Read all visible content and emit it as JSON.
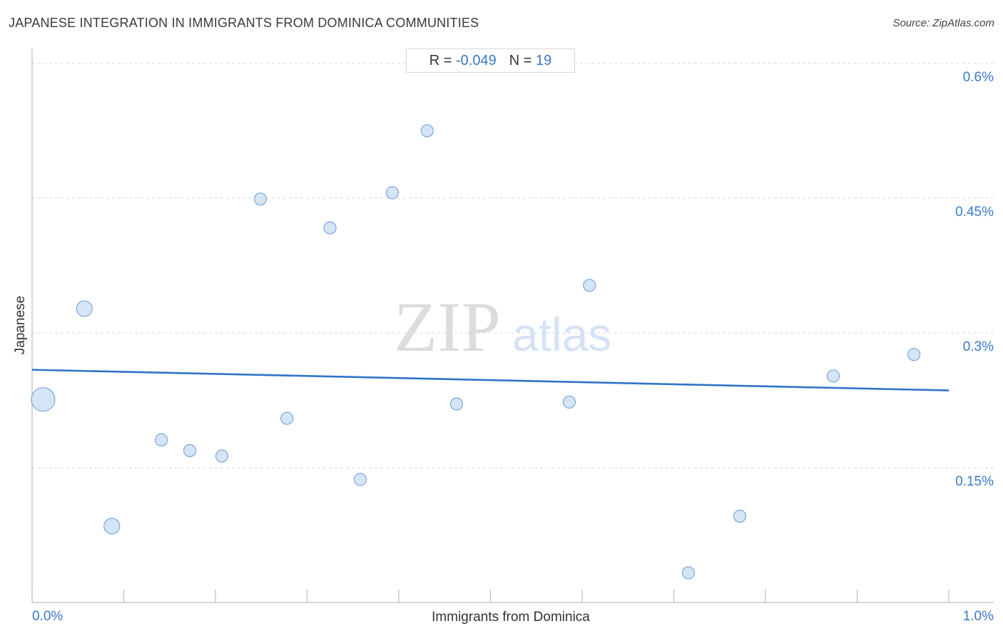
{
  "title": "JAPANESE INTEGRATION IN IMMIGRANTS FROM DOMINICA COMMUNITIES",
  "source": "Source: ZipAtlas.com",
  "stats": {
    "r_label": "R =",
    "r_value": "-0.049",
    "n_label": "N =",
    "n_value": "19"
  },
  "watermark": {
    "zip": "ZIP",
    "atlas": "atlas"
  },
  "colors": {
    "point_fill": "#cfe0f5",
    "point_stroke": "#7aa6dc",
    "trend": "#2f74c8",
    "tick_text": "#3a78c9",
    "grid": "#d9d9d9"
  },
  "chart_data": {
    "type": "scatter",
    "title": "JAPANESE INTEGRATION IN IMMIGRANTS FROM DOMINICA COMMUNITIES",
    "xlabel": "Immigrants from Dominica",
    "ylabel": "Japanese",
    "xlim": [
      0,
      1.0
    ],
    "ylim": [
      0,
      0.615
    ],
    "x_tick_labels": [
      {
        "value": 0,
        "label": "0.0%"
      },
      {
        "value": 1.0,
        "label": "1.0%"
      }
    ],
    "y_tick_labels": [
      {
        "value": 0.15,
        "label": "0.15%"
      },
      {
        "value": 0.3,
        "label": "0.3%"
      },
      {
        "value": 0.45,
        "label": "0.45%"
      },
      {
        "value": 0.6,
        "label": "0.6%"
      }
    ],
    "grid": true,
    "points": [
      {
        "x": 0.012,
        "y": 0.226,
        "size": 3
      },
      {
        "x": 0.057,
        "y": 0.327,
        "size": 2
      },
      {
        "x": 0.087,
        "y": 0.085,
        "size": 2
      },
      {
        "x": 0.141,
        "y": 0.181,
        "size": 1
      },
      {
        "x": 0.172,
        "y": 0.169,
        "size": 1
      },
      {
        "x": 0.207,
        "y": 0.163,
        "size": 1
      },
      {
        "x": 0.249,
        "y": 0.449,
        "size": 1
      },
      {
        "x": 0.278,
        "y": 0.205,
        "size": 1
      },
      {
        "x": 0.325,
        "y": 0.417,
        "size": 1
      },
      {
        "x": 0.358,
        "y": 0.137,
        "size": 1
      },
      {
        "x": 0.393,
        "y": 0.456,
        "size": 1
      },
      {
        "x": 0.431,
        "y": 0.525,
        "size": 1
      },
      {
        "x": 0.463,
        "y": 0.221,
        "size": 1
      },
      {
        "x": 0.586,
        "y": 0.223,
        "size": 1
      },
      {
        "x": 0.608,
        "y": 0.353,
        "size": 1
      },
      {
        "x": 0.716,
        "y": 0.033,
        "size": 1
      },
      {
        "x": 0.772,
        "y": 0.096,
        "size": 1
      },
      {
        "x": 0.874,
        "y": 0.252,
        "size": 1
      },
      {
        "x": 0.962,
        "y": 0.276,
        "size": 1
      }
    ],
    "trendline": {
      "x": [
        0.0,
        1.0
      ],
      "y": [
        0.259,
        0.236
      ]
    }
  }
}
